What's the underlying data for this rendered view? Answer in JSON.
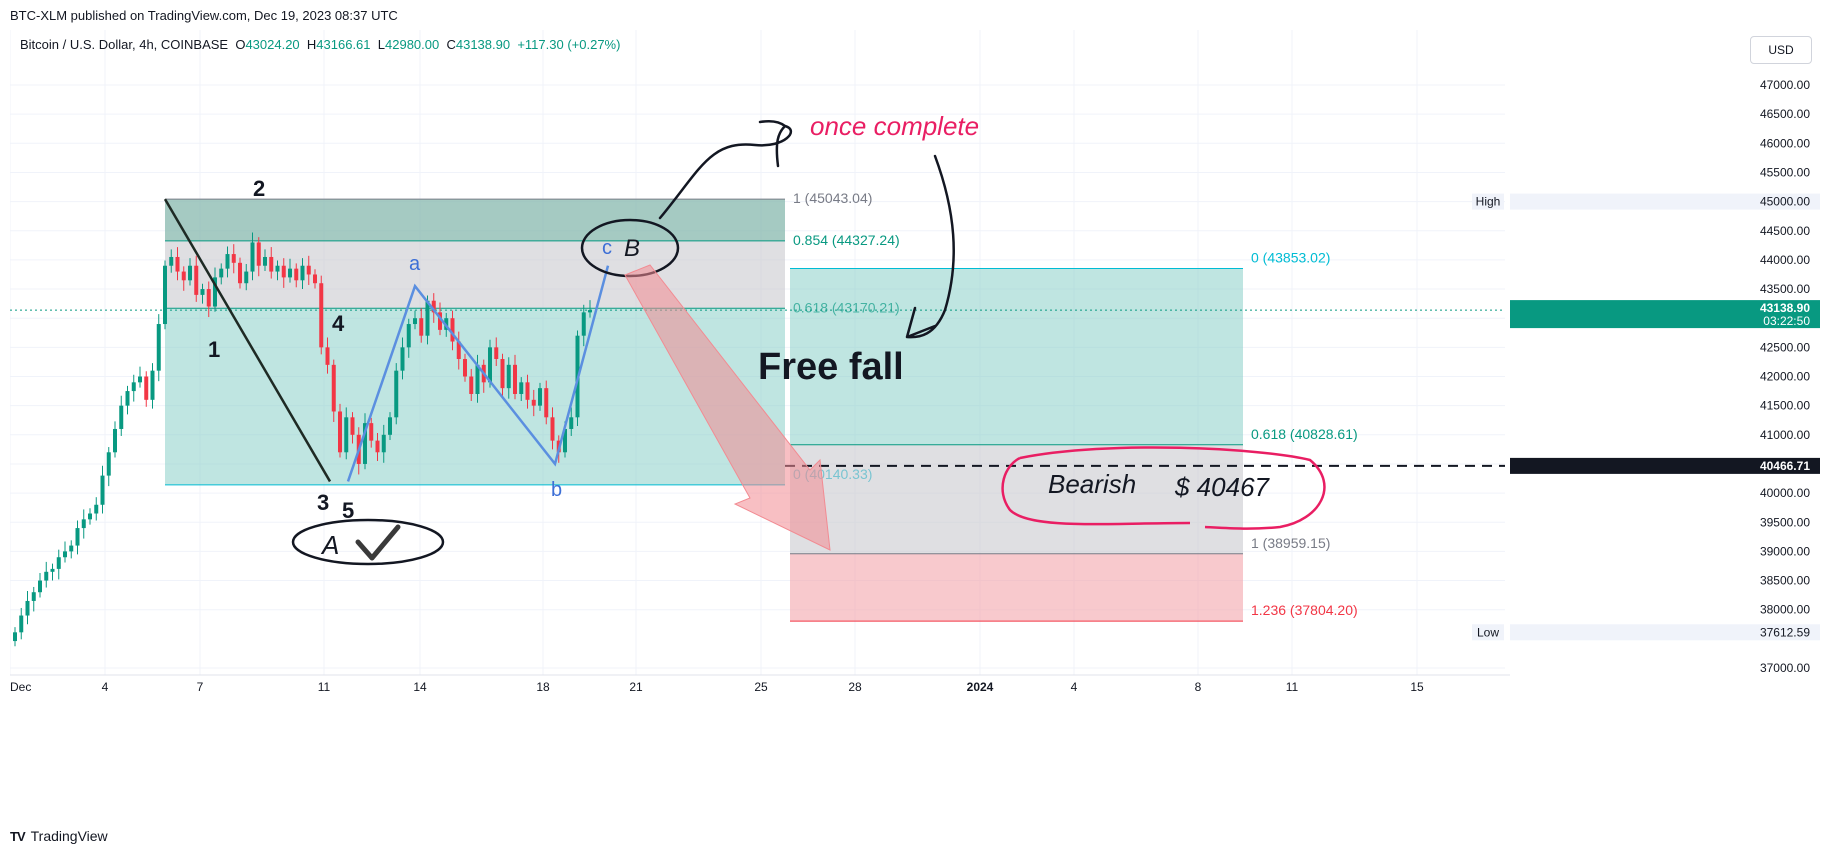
{
  "header": {
    "published": "BTC-XLM published on TradingView.com, Dec 19, 2023 08:37 UTC"
  },
  "legend": {
    "symbol": "Bitcoin / U.S. Dollar, 4h, COINBASE",
    "o_label": "O",
    "o_value": "43024.20",
    "h_label": "H",
    "h_value": "43166.61",
    "l_label": "L",
    "l_value": "42980.00",
    "c_label": "C",
    "c_value": "43138.90",
    "change": "+117.30 (+0.27%)"
  },
  "currency_button": "USD",
  "footer": {
    "logo_mark": "TV",
    "brand": "TradingView"
  },
  "colors": {
    "up": "#089981",
    "down": "#f23645",
    "fib_teal": "#089981",
    "fib_cyan": "#00bcd4",
    "fib_red": "#f23645",
    "wave_blue": "#5b8fe0",
    "annotation_pink": "#e91e63"
  },
  "chart_data": {
    "type": "candlestick",
    "title": "",
    "ylim": [
      36800,
      47800
    ],
    "y_ticks": [
      "47000.00",
      "46500.00",
      "46000.00",
      "45500.00",
      "45000.00",
      "44500.00",
      "44000.00",
      "43500.00",
      "43000.00",
      "42500.00",
      "42000.00",
      "41500.00",
      "41000.00",
      "40500.00",
      "40000.00",
      "39500.00",
      "39000.00",
      "38500.00",
      "38000.00",
      "37000.00"
    ],
    "x_ticks": [
      "Dec",
      "4",
      "7",
      "11",
      "14",
      "18",
      "21",
      "25",
      "28",
      "2024",
      "4",
      "8",
      "11",
      "15"
    ],
    "price_labels": {
      "high_tag": "High",
      "high_value": "45000.00",
      "current_price": "43138.90",
      "countdown": "03:22:50",
      "level_value": "40466.71",
      "low_tag": "Low",
      "low_value": "37612.59"
    },
    "candles_close": [
      37612,
      37900,
      38150,
      38300,
      38500,
      38650,
      38700,
      38900,
      39000,
      39100,
      39400,
      39550,
      39650,
      39800,
      40300,
      40700,
      41100,
      41500,
      41750,
      41900,
      42000,
      41600,
      42100,
      42900,
      43900,
      44050,
      43800,
      43650,
      43900,
      43400,
      43500,
      43200,
      43700,
      43850,
      44100,
      43950,
      43600,
      43800,
      44300,
      43900,
      44050,
      43800,
      43900,
      43700,
      43850,
      43650,
      43900,
      43750,
      43600,
      42500,
      42200,
      41400,
      40700,
      41300,
      41000,
      40500,
      41200,
      40900,
      40700,
      41000,
      41300,
      42100,
      42500,
      42900,
      43000,
      42700,
      43300,
      43100,
      42800,
      43000,
      42600,
      42300,
      42000,
      41700,
      42200,
      41900,
      42500,
      42300,
      41800,
      42200,
      41700,
      41900,
      41600,
      41500,
      41800,
      41300,
      40900,
      40700,
      41100,
      41300,
      42700,
      43100,
      43139
    ],
    "fib_left": {
      "levels": [
        {
          "label": "1 (45043.04)",
          "price": 45043.04
        },
        {
          "label": "0.854 (44327.24)",
          "price": 44327.24
        },
        {
          "label": "0.618 (43170.21)",
          "price": 43170.21
        },
        {
          "label": "0 (40140.33)",
          "price": 40140.33
        }
      ]
    },
    "fib_right": {
      "levels": [
        {
          "label": "0 (43853.02)",
          "price": 43853.02
        },
        {
          "label": "0.618 (40828.61)",
          "price": 40828.61
        },
        {
          "label": "1 (38959.15)",
          "price": 38959.15
        },
        {
          "label": "1.236 (37804.20)",
          "price": 37804.2
        }
      ]
    },
    "wave_labels": {
      "w1": "1",
      "w2": "2",
      "w3": "3",
      "w4": "4",
      "w5": "5",
      "wa": "a",
      "wb": "b",
      "wc": "c"
    },
    "annotations": {
      "big_a": "A",
      "big_b": "B",
      "once_complete": "once complete",
      "free_fall": "Free fall",
      "bearish": "Bearish",
      "bearish_price": "$ 40467"
    }
  }
}
